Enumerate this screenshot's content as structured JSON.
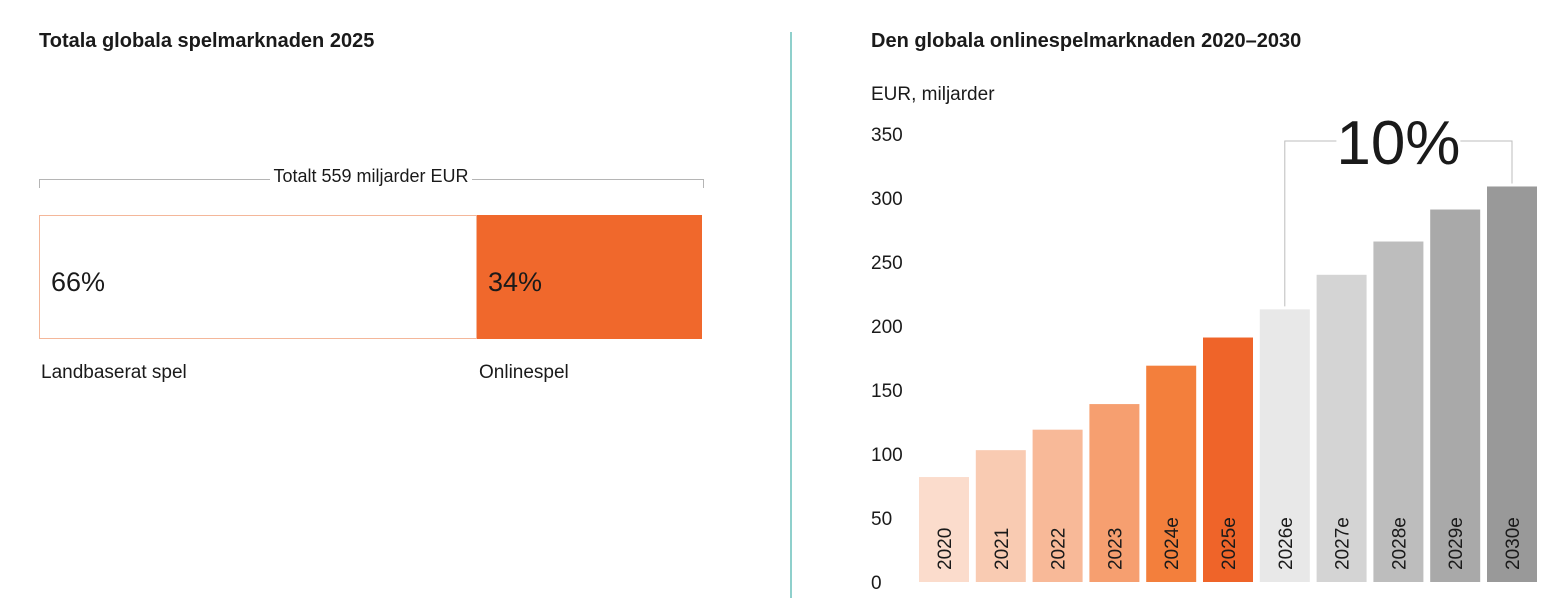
{
  "left_panel": {
    "title": "Totala globala spelmarknaden 2025",
    "total_label": "Totalt 559 miljarder EUR",
    "segments": [
      {
        "label": "Landbaserat spel",
        "pct_label": "66%",
        "share": 0.66,
        "color": "#ffffff",
        "border": "#f4b79a"
      },
      {
        "label": "Onlinespel",
        "pct_label": "34%",
        "share": 0.34,
        "color": "#f0682c"
      }
    ]
  },
  "right_panel": {
    "title": "Den globala onlinespelmarknaden 2020–2030"
  },
  "chart_data": {
    "type": "bar",
    "title": "Den globala onlinespelmarknaden 2020–2030",
    "ylabel": "EUR, miljarder",
    "ylim": [
      0,
      350
    ],
    "yticks": [
      "0",
      "50",
      "100",
      "150",
      "200",
      "250",
      "300",
      "350"
    ],
    "categories": [
      "2020",
      "2021",
      "2022",
      "2023",
      "2024e",
      "2025e",
      "2026e",
      "2027e",
      "2028e",
      "2029e",
      "2030e"
    ],
    "values": [
      82,
      103,
      119,
      139,
      169,
      191,
      213,
      240,
      266,
      291,
      309
    ],
    "colors": [
      "#fbdccc",
      "#f9cbb2",
      "#f8b998",
      "#f69f70",
      "#f37f3c",
      "#ef6429",
      "#e8e8e8",
      "#d4d4d4",
      "#bdbdbd",
      "#a9a9a9",
      "#999999"
    ],
    "grid": false,
    "annotation": {
      "text": "10%",
      "from": "2026e",
      "to": "2030e"
    }
  }
}
